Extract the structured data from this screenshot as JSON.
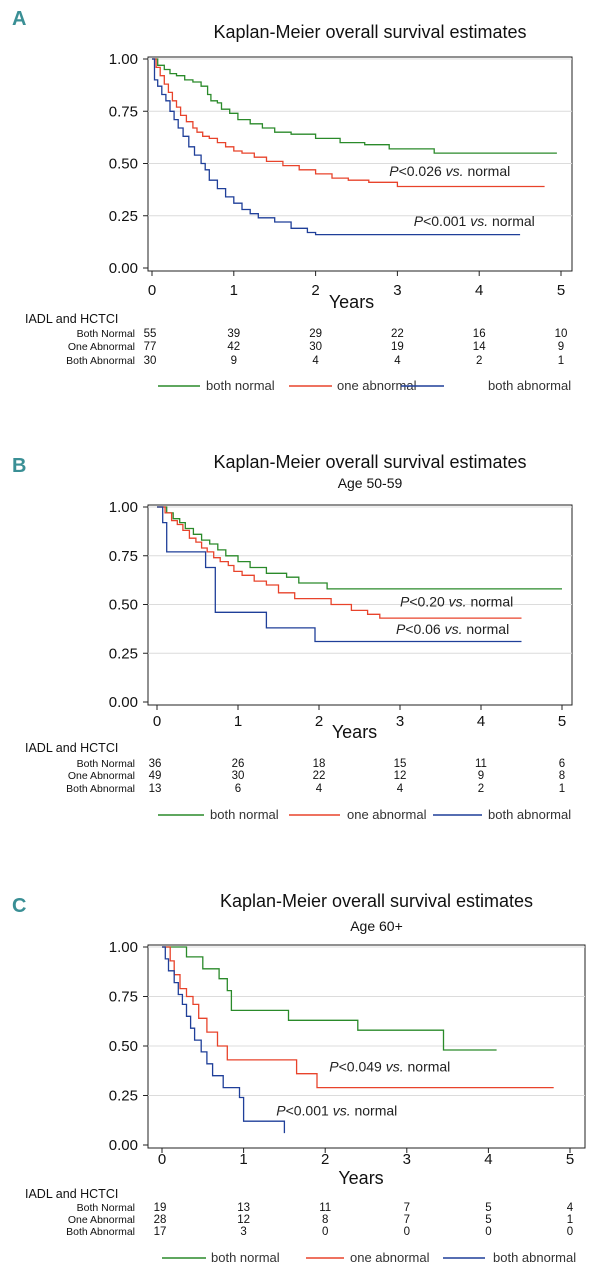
{
  "chart_data": [
    {
      "type": "line",
      "panel": "A",
      "title": "Kaplan-Meier overall survival estimates",
      "subtitle": "",
      "xlabel": "Years",
      "ylabel": "",
      "xlim": [
        0,
        5
      ],
      "ylim": [
        0,
        1
      ],
      "xticks": [
        "0",
        "1",
        "2",
        "3",
        "4",
        "5"
      ],
      "yticks": [
        "0.00",
        "0.25",
        "0.50",
        "0.75",
        "1.00"
      ],
      "grid": true,
      "series": [
        {
          "name": "both normal",
          "color": "#2a8a2a",
          "x": [
            0,
            0.07,
            0.15,
            0.22,
            0.3,
            0.4,
            0.5,
            0.6,
            0.68,
            0.72,
            0.8,
            0.85,
            0.95,
            1.05,
            1.2,
            1.35,
            1.5,
            1.7,
            2.0,
            2.3,
            2.6,
            2.9,
            3.45,
            4.0,
            4.5,
            4.95
          ],
          "y": [
            1.0,
            0.97,
            0.95,
            0.93,
            0.92,
            0.9,
            0.89,
            0.87,
            0.83,
            0.8,
            0.79,
            0.76,
            0.74,
            0.71,
            0.69,
            0.67,
            0.65,
            0.64,
            0.62,
            0.6,
            0.59,
            0.57,
            0.55,
            0.55,
            0.55,
            0.55
          ]
        },
        {
          "name": "one abnormal",
          "color": "#e8432b",
          "x": [
            0,
            0.05,
            0.1,
            0.15,
            0.2,
            0.25,
            0.3,
            0.35,
            0.42,
            0.5,
            0.55,
            0.62,
            0.7,
            0.8,
            0.9,
            1.0,
            1.1,
            1.25,
            1.4,
            1.6,
            1.8,
            2.0,
            2.2,
            2.4,
            2.65,
            3.0,
            3.5,
            4.0,
            4.8
          ],
          "y": [
            1.0,
            0.96,
            0.92,
            0.88,
            0.84,
            0.8,
            0.77,
            0.73,
            0.7,
            0.67,
            0.65,
            0.63,
            0.62,
            0.6,
            0.58,
            0.56,
            0.55,
            0.53,
            0.51,
            0.49,
            0.47,
            0.45,
            0.43,
            0.42,
            0.41,
            0.39,
            0.39,
            0.39,
            0.39
          ]
        },
        {
          "name": "both abnormal",
          "color": "#1f3f99",
          "x": [
            0,
            0.03,
            0.07,
            0.12,
            0.17,
            0.22,
            0.27,
            0.32,
            0.38,
            0.45,
            0.52,
            0.6,
            0.65,
            0.7,
            0.8,
            0.9,
            1.0,
            1.1,
            1.2,
            1.3,
            1.5,
            1.7,
            1.9,
            2.0,
            2.5,
            3.0,
            4.5
          ],
          "y": [
            1.0,
            0.9,
            0.87,
            0.83,
            0.8,
            0.75,
            0.71,
            0.67,
            0.63,
            0.58,
            0.54,
            0.5,
            0.47,
            0.42,
            0.38,
            0.34,
            0.31,
            0.28,
            0.26,
            0.24,
            0.22,
            0.19,
            0.17,
            0.16,
            0.16,
            0.16,
            0.16
          ]
        }
      ],
      "annotations": [
        {
          "text_p": "P",
          "text_rest": "<0.026 ",
          "text_vs": "vs.",
          "text_end": " normal",
          "x": 2.9,
          "y": 0.44
        },
        {
          "text_p": "P",
          "text_rest": "<0.001 ",
          "text_vs": "vs.",
          "text_end": " normal",
          "x": 3.2,
          "y": 0.2
        }
      ],
      "risk_table": {
        "header": "IADL and HCTCI",
        "rows": [
          {
            "label": "Both Normal",
            "values": [
              "55",
              "39",
              "29",
              "22",
              "16",
              "10"
            ]
          },
          {
            "label": "One Abnormal",
            "values": [
              "77",
              "42",
              "30",
              "19",
              "14",
              "9"
            ]
          },
          {
            "label": "Both Abnormal",
            "values": [
              "30",
              "9",
              "4",
              "4",
              "2",
              "1"
            ]
          }
        ]
      },
      "legend": [
        "both normal",
        "one abnormal",
        "both abnormal"
      ]
    },
    {
      "type": "line",
      "panel": "B",
      "title": "Kaplan-Meier overall survival estimates",
      "subtitle": "Age 50-59",
      "xlabel": "Years",
      "ylabel": "",
      "xlim": [
        0,
        5
      ],
      "ylim": [
        0,
        1
      ],
      "xticks": [
        "0",
        "1",
        "2",
        "3",
        "4",
        "5"
      ],
      "yticks": [
        "0.00",
        "0.25",
        "0.50",
        "0.75",
        "1.00"
      ],
      "grid": true,
      "series": [
        {
          "name": "both normal",
          "color": "#2a8a2a",
          "x": [
            0,
            0.12,
            0.2,
            0.28,
            0.35,
            0.45,
            0.55,
            0.65,
            0.75,
            0.85,
            1.0,
            1.15,
            1.35,
            1.6,
            1.75,
            2.1,
            2.5,
            3.0,
            4.0,
            5.0
          ],
          "y": [
            1.0,
            0.97,
            0.94,
            0.92,
            0.89,
            0.86,
            0.83,
            0.81,
            0.78,
            0.75,
            0.72,
            0.69,
            0.66,
            0.64,
            0.61,
            0.58,
            0.58,
            0.58,
            0.58,
            0.58
          ]
        },
        {
          "name": "one abnormal",
          "color": "#e8432b",
          "x": [
            0,
            0.1,
            0.18,
            0.25,
            0.32,
            0.4,
            0.48,
            0.55,
            0.62,
            0.7,
            0.78,
            0.88,
            0.95,
            1.05,
            1.2,
            1.35,
            1.5,
            1.7,
            2.0,
            2.15,
            2.4,
            2.6,
            2.75,
            3.0,
            4.0,
            4.5
          ],
          "y": [
            1.0,
            0.97,
            0.93,
            0.91,
            0.88,
            0.84,
            0.82,
            0.79,
            0.77,
            0.74,
            0.72,
            0.7,
            0.67,
            0.65,
            0.62,
            0.6,
            0.56,
            0.53,
            0.53,
            0.5,
            0.47,
            0.45,
            0.43,
            0.43,
            0.43,
            0.43
          ]
        },
        {
          "name": "both abnormal",
          "color": "#1f3f99",
          "x": [
            0,
            0.07,
            0.12,
            0.55,
            0.6,
            0.72,
            1.35,
            1.95,
            3.0,
            4.5
          ],
          "y": [
            1.0,
            0.92,
            0.77,
            0.77,
            0.69,
            0.46,
            0.38,
            0.31,
            0.31,
            0.31
          ]
        }
      ],
      "annotations": [
        {
          "text_p": "P",
          "text_rest": "<0.20 ",
          "text_vs": "vs.",
          "text_end": " normal",
          "x": 3.0,
          "y": 0.49
        },
        {
          "text_p": "P",
          "text_rest": "<0.06 ",
          "text_vs": "vs.",
          "text_end": " normal",
          "x": 2.95,
          "y": 0.35
        }
      ],
      "risk_table": {
        "header": "IADL and HCTCI",
        "rows": [
          {
            "label": "Both Normal",
            "values": [
              "36",
              "26",
              "18",
              "15",
              "11",
              "6"
            ]
          },
          {
            "label": "One Abnormal",
            "values": [
              "49",
              "30",
              "22",
              "12",
              "9",
              "8"
            ]
          },
          {
            "label": "Both Abnormal",
            "values": [
              "13",
              "6",
              "4",
              "4",
              "2",
              "1"
            ]
          }
        ]
      },
      "legend": [
        "both normal",
        "one abnormal",
        "both abnormal"
      ]
    },
    {
      "type": "line",
      "panel": "C",
      "title": "Kaplan-Meier overall survival estimates",
      "subtitle": "Age 60+",
      "xlabel": "Years",
      "ylabel": "",
      "xlim": [
        0,
        5
      ],
      "ylim": [
        0,
        1
      ],
      "xticks": [
        "0",
        "1",
        "2",
        "3",
        "4",
        "5"
      ],
      "yticks": [
        "0.00",
        "0.25",
        "0.50",
        "0.75",
        "1.00"
      ],
      "grid": true,
      "series": [
        {
          "name": "both normal",
          "color": "#2a8a2a",
          "x": [
            0,
            0.3,
            0.5,
            0.7,
            0.8,
            0.85,
            1.55,
            2.4,
            3.45,
            4.1
          ],
          "y": [
            1.0,
            0.95,
            0.89,
            0.84,
            0.78,
            0.68,
            0.63,
            0.58,
            0.48,
            0.48
          ]
        },
        {
          "name": "one abnormal",
          "color": "#e8432b",
          "x": [
            0,
            0.1,
            0.15,
            0.22,
            0.3,
            0.38,
            0.45,
            0.55,
            0.68,
            0.8,
            1.5,
            1.65,
            1.9,
            3.0,
            4.8
          ],
          "y": [
            1.0,
            0.93,
            0.86,
            0.79,
            0.75,
            0.71,
            0.64,
            0.57,
            0.5,
            0.43,
            0.43,
            0.36,
            0.29,
            0.29,
            0.29
          ]
        },
        {
          "name": "both abnormal",
          "color": "#1f3f99",
          "x": [
            0,
            0.04,
            0.08,
            0.15,
            0.2,
            0.25,
            0.3,
            0.35,
            0.4,
            0.48,
            0.55,
            0.62,
            0.75,
            0.95,
            1.0,
            1.5
          ],
          "y": [
            1.0,
            0.94,
            0.88,
            0.82,
            0.76,
            0.71,
            0.65,
            0.59,
            0.53,
            0.47,
            0.41,
            0.35,
            0.29,
            0.24,
            0.12,
            0.06
          ]
        }
      ],
      "annotations": [
        {
          "text_p": "P",
          "text_rest": "<0.049 ",
          "text_vs": "vs.",
          "text_end": " normal",
          "x": 2.05,
          "y": 0.37
        },
        {
          "text_p": "P",
          "text_rest": "<0.001 ",
          "text_vs": "vs.",
          "text_end": " normal",
          "x": 1.4,
          "y": 0.15
        }
      ],
      "risk_table": {
        "header": "IADL and HCTCI",
        "rows": [
          {
            "label": "Both Normal",
            "values": [
              "19",
              "13",
              "11",
              "7",
              "5",
              "4"
            ]
          },
          {
            "label": "One Abnormal",
            "values": [
              "28",
              "12",
              "8",
              "7",
              "5",
              "1"
            ]
          },
          {
            "label": "Both Abnormal",
            "values": [
              "17",
              "3",
              "0",
              "0",
              "0",
              "0"
            ]
          }
        ]
      },
      "legend": [
        "both normal",
        "one abnormal",
        "both abnormal"
      ]
    }
  ]
}
